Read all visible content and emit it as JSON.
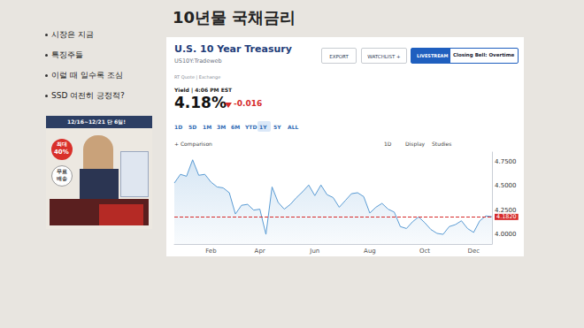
{
  "slide": {
    "title": "10년물 국채금리",
    "bullets": [
      "시장은 지금",
      "특징주들",
      "이럴 때 일수록 조심",
      "SSD 여전히 긍정적?"
    ],
    "ad": {
      "banner": "12/16~12/21 단 6일!",
      "discount": [
        "최대",
        "40%"
      ],
      "shipping": [
        "무료",
        "배송"
      ]
    }
  },
  "quote": {
    "name": "U.S. 10 Year Treasury",
    "symbol": "US10Y:Tradeweb",
    "buttons": [
      "EXPORT",
      "WATCHLIST +"
    ],
    "livestream": "LIVESTREAM",
    "show": "Closing Bell: Overtime",
    "source": "RT Quote | Exchange",
    "time": "Yield | 4:06 PM EST",
    "yield": "4.18%",
    "change": "-0.016",
    "ranges": [
      "1D",
      "5D",
      "1M",
      "3M",
      "6M",
      "YTD",
      "1Y",
      "5Y",
      "ALL"
    ],
    "selected_range": "1Y",
    "toolbar": [
      "+ Comparison",
      "1D",
      "Display",
      "Studies"
    ]
  },
  "chart_data": {
    "type": "line",
    "categories": [
      null,
      null,
      null,
      null,
      null,
      null,
      "Feb",
      null,
      null,
      null,
      null,
      null,
      null,
      null,
      "Apr",
      null,
      null,
      null,
      null,
      null,
      null,
      null,
      null,
      "Jun",
      null,
      null,
      null,
      null,
      null,
      null,
      null,
      null,
      "Aug",
      null,
      null,
      null,
      null,
      null,
      null,
      null,
      null,
      "Oct",
      null,
      null,
      null,
      null,
      null,
      null,
      null,
      "Dec",
      null,
      null,
      null
    ],
    "values": [
      4.53,
      4.62,
      4.6,
      4.77,
      4.61,
      4.62,
      4.54,
      4.49,
      4.48,
      4.43,
      4.21,
      4.3,
      4.31,
      4.25,
      4.26,
      4.0,
      4.49,
      4.33,
      4.26,
      4.31,
      4.38,
      4.44,
      4.51,
      4.4,
      4.51,
      4.41,
      4.38,
      4.28,
      4.35,
      4.42,
      4.43,
      4.39,
      4.22,
      4.28,
      4.32,
      4.26,
      4.23,
      4.08,
      4.06,
      4.13,
      4.18,
      4.12,
      4.05,
      4.01,
      4.0,
      4.08,
      4.1,
      4.14,
      4.06,
      4.02,
      4.14,
      4.19,
      4.182
    ],
    "color": "#5a9bd3",
    "ylim": [
      3.9,
      4.85
    ],
    "yticks": [
      {
        "value": 4.0,
        "label": "4.0000"
      },
      {
        "value": 4.25,
        "label": "4.2500"
      },
      {
        "value": 4.5,
        "label": "4.5000"
      },
      {
        "value": 4.75,
        "label": "4.7500"
      }
    ],
    "grid": false,
    "annotations": [
      {
        "value": 4.182,
        "label": "4.1820"
      }
    ]
  }
}
